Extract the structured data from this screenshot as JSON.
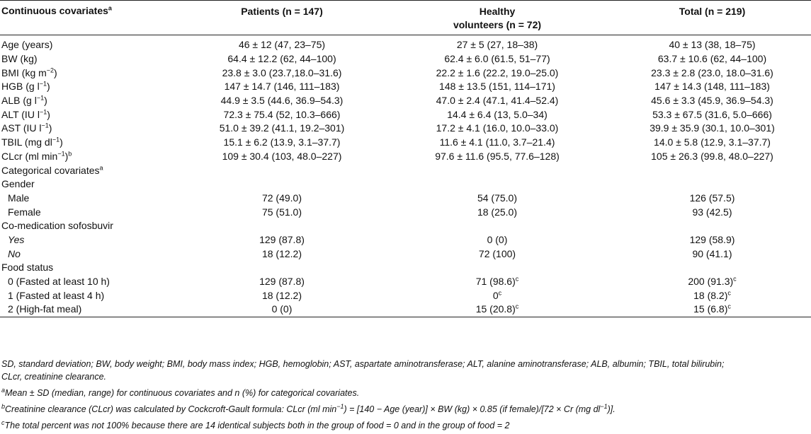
{
  "header": {
    "col0": "Continuous covariates",
    "col0_sup": "a",
    "col1": "Patients (n = 147)",
    "col2_line1": "Healthy",
    "col2_line2": "volunteers (n = 72)",
    "col3": "Total (n = 219)"
  },
  "rows": [
    {
      "label": "Age (years)",
      "p": "46 ± 12 (47, 23–75)",
      "h": "27 ± 5 (27, 18–38)",
      "t": "40 ± 13 (38, 18–75)"
    },
    {
      "label": "BW (kg)",
      "p": "64.4 ± 12.2 (62, 44–100)",
      "h": "62.4 ± 6.0 (61.5, 51–77)",
      "t": "63.7 ± 10.6 (62, 44–100)"
    },
    {
      "label": "BMI (kg m",
      "label_sup": "−2",
      "label_end": ")",
      "p": "23.8 ± 3.0 (23.7,18.0–31.6)",
      "h": "22.2 ± 1.6 (22.2, 19.0–25.0)",
      "t": "23.3 ± 2.8 (23.0, 18.0–31.6)"
    },
    {
      "label": "HGB (g l",
      "label_sup": "−1",
      "label_end": ")",
      "p": "147 ± 14.7 (146, 111–183)",
      "h": "148 ± 13.5 (151, 114–171)",
      "t": "147 ± 14.3 (148, 111–183)"
    },
    {
      "label": "ALB (g l",
      "label_sup": "−1",
      "label_end": ")",
      "p": "44.9 ± 3.5 (44.6, 36.9–54.3)",
      "h": "47.0 ± 2.4 (47.1, 41.4–52.4)",
      "t": "45.6 ± 3.3 (45.9, 36.9–54.3)"
    },
    {
      "label": "ALT (IU l",
      "label_sup": "−1",
      "label_end": ")",
      "p": "72.3 ± 75.4 (52, 10.3–666)",
      "h": "14.4 ± 6.4 (13, 5.0–34)",
      "t": "53.3 ± 67.5 (31.6, 5.0–666)"
    },
    {
      "label": "AST (IU l",
      "label_sup": "−1",
      "label_end": ")",
      "p": "51.0 ± 39.2 (41.1, 19.2–301)",
      "h": "17.2 ± 4.1 (16.0, 10.0–33.0)",
      "t": "39.9 ± 35.9 (30.1, 10.0–301)"
    },
    {
      "label": "TBIL (mg dl",
      "label_sup": "−1",
      "label_end": ")",
      "p": "15.1 ± 6.2 (13.9, 3.1–37.7)",
      "h": "11.6 ± 4.1 (11.0, 3.7–21.4)",
      "t": "14.0 ± 5.8 (12.9, 3.1–37.7)"
    },
    {
      "label": "CLcr (ml min",
      "label_sup": "−1",
      "label_end": ")",
      "label_sup2": "b",
      "p": "109 ± 30.4 (103, 48.0–227)",
      "h": "97.6 ± 11.6 (95.5, 77.6–128)",
      "t": "105 ± 26.3 (99.8, 48.0–227)"
    },
    {
      "label": "Categorical covariates",
      "label_sup2": "a",
      "p": "",
      "h": "",
      "t": ""
    },
    {
      "label": "Gender",
      "p": "",
      "h": "",
      "t": ""
    },
    {
      "label": "Male",
      "p": "72 (49.0)",
      "h": "54 (75.0)",
      "t": "126 (57.5)"
    },
    {
      "label": "Female",
      "p": "75 (51.0)",
      "h": "18 (25.0)",
      "t": "93 (42.5)"
    },
    {
      "label": "Co-medication sofosbuvir",
      "p": "",
      "h": "",
      "t": ""
    },
    {
      "label": "Yes",
      "p": "129 (87.8)",
      "h": "0 (0)",
      "t": "129 (58.9)"
    },
    {
      "label": "No",
      "p": "18 (12.2)",
      "h": "72 (100)",
      "t": "90 (41.1)"
    },
    {
      "label": "Food status",
      "p": "",
      "h": "",
      "t": ""
    },
    {
      "label": "0 (Fasted at least 10 h)",
      "p": "129 (87.8)",
      "h": "71 (98.6)",
      "h_sup": "c",
      "t": "200 (91.3)",
      "t_sup": "c"
    },
    {
      "label": "1 (Fasted at least 4 h)",
      "p": "18 (12.2)",
      "h": "0",
      "h_sup": "c",
      "t": "18 (8.2)",
      "t_sup": "c"
    },
    {
      "label": "2 (High-fat meal)",
      "p": "0 (0)",
      "h": "15 (20.8)",
      "h_sup": "c",
      "t": "15 (6.8)",
      "t_sup": "c"
    }
  ],
  "notes": {
    "abbrev_line1": "SD, standard deviation; BW, body weight; BMI, body mass index; HGB, hemoglobin; AST, aspartate aminotransferase; ALT, alanine aminotransferase; ALB, albumin; TBIL, total bilirubin;",
    "abbrev_line2": "CLcr, creatinine clearance.",
    "a_mark": "a",
    "a_text": "Mean ± SD (median, range) for continuous covariates and n (%) for categorical covariates.",
    "b_mark": "b",
    "b_text_1": "Creatinine clearance (CLcr) was calculated by Cockcroft-Gault formula: CLcr (ml min",
    "b_sup_1": "−1",
    "b_text_2": ") = [140 − Age (year)] × BW (kg) × 0.85 (if female)/[72 × Cr (mg dl",
    "b_sup_2": "−1",
    "b_text_3": ")].",
    "c_mark": "c",
    "c_text": "The total percent was not 100% because there are 14 identical subjects both in the group of food = 0 and in the group of food = 2"
  }
}
